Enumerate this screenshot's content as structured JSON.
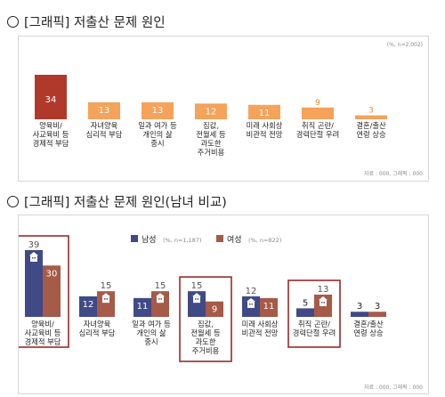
{
  "sections": [
    {
      "bullet": "○",
      "title": "[그래픽] 저출산 문제 원인"
    },
    {
      "bullet": "○",
      "title": "[그래픽] 저출산 문제 원인(남녀 비교)"
    }
  ],
  "chart1_notes": {
    "unit": "(%, n=2,002)",
    "source": "자료 : 000, 그래픽 : 000"
  },
  "chart2_notes": {
    "source": "자료 : 000, 그래픽 : 000"
  },
  "colors": {
    "bar_top": "#b0392b",
    "bar_orange": "#f5a25b",
    "label_orange": "#ef8a2e",
    "male": "#3f4a86",
    "female": "#a65a48",
    "highlight": "#9a2a2a"
  },
  "chart_data": [
    {
      "type": "bar",
      "title": "[그래픽] 저출산 문제 원인",
      "unit": "(%, n=2,002)",
      "categories": [
        [
          "양육비/",
          "사교육비 등",
          "경제적 부담"
        ],
        [
          "자녀양육",
          "심리적 부담"
        ],
        [
          "일과 여가 등",
          "개인의 삶",
          "중시"
        ],
        [
          "집값,",
          "전월세 등",
          "과도한",
          "주거비용"
        ],
        [
          "미래 사회상",
          "비관적 전망"
        ],
        [
          "취직 곤란/",
          "경력단절 우려"
        ],
        [
          "결혼/출산",
          "연령 상승"
        ]
      ],
      "values": [
        34,
        13,
        13,
        12,
        11,
        9,
        3
      ],
      "ylim": [
        0,
        40
      ]
    },
    {
      "type": "bar",
      "title": "[그래픽] 저출산 문제 원인(남녀 비교)",
      "categories": [
        [
          "양육비/",
          "사교육비 등",
          "경제적 부담"
        ],
        [
          "자녀양육",
          "심리적 부담"
        ],
        [
          "일과 여가 등",
          "개인의 삶",
          "중시"
        ],
        [
          "집값,",
          "전월세 등",
          "과도한",
          "주거비용"
        ],
        [
          "미래 사회상",
          "비관적 전망"
        ],
        [
          "취직 곤란/",
          "경력단절 우려"
        ],
        [
          "결혼/출산",
          "연령 상승"
        ]
      ],
      "series": [
        {
          "name": "남성",
          "n_label": "(%, n=1,187)",
          "values": [
            39,
            12,
            11,
            15,
            12,
            5,
            3
          ]
        },
        {
          "name": "여성",
          "n_label": "(%, n=822)",
          "values": [
            30,
            15,
            15,
            9,
            11,
            13,
            3
          ]
        }
      ],
      "highlighted_categories": [
        0,
        3,
        5
      ],
      "ylim": [
        0,
        45
      ]
    }
  ]
}
